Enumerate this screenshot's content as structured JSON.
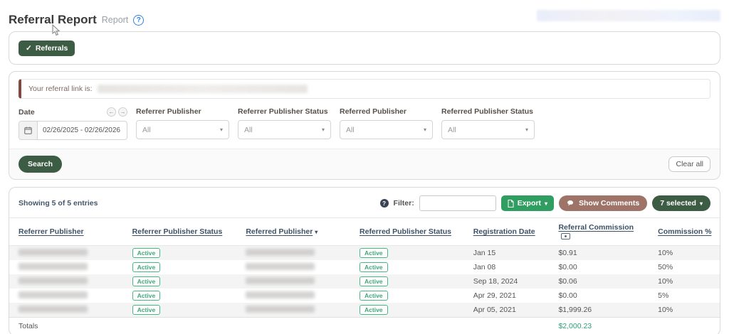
{
  "page": {
    "title": "Referral Report",
    "subtitle": "Report"
  },
  "tabs": {
    "referrals_label": "Referrals"
  },
  "filters": {
    "referral_link_label": "Your referral link is:",
    "date": {
      "label": "Date",
      "value": "02/26/2025 - 02/26/2026"
    },
    "selects": [
      {
        "label": "Referrer Publisher",
        "value": "All"
      },
      {
        "label": "Referrer Publisher Status",
        "value": "All"
      },
      {
        "label": "Referred Publisher",
        "value": "All"
      },
      {
        "label": "Referred Publisher Status",
        "value": "All"
      }
    ],
    "search_label": "Search",
    "clear_label": "Clear all"
  },
  "table_toolbar": {
    "showing_text": "Showing 5 of 5 entries",
    "filter_label": "Filter:",
    "filter_value": "",
    "export_label": "Export",
    "show_comments_label": "Show Comments",
    "selected_label": "7 selected"
  },
  "table": {
    "headers": [
      {
        "label": "Referrer Publisher"
      },
      {
        "label": "Referrer Publisher Status"
      },
      {
        "label": "Referred Publisher",
        "sort_indicator": "▾"
      },
      {
        "label": "Referred Publisher Status"
      },
      {
        "label": "Registration Date"
      },
      {
        "label": "Referral Commission",
        "icon": "cash-icon"
      },
      {
        "label": "Commission %"
      }
    ],
    "rows": [
      {
        "referrer_status": "Active",
        "referred_status": "Active",
        "registration_date": "Jan 15",
        "commission": "$0.91",
        "commission_pct": "10%"
      },
      {
        "referrer_status": "Active",
        "referred_status": "Active",
        "registration_date": "Jan 08",
        "commission": "$0.00",
        "commission_pct": "50%"
      },
      {
        "referrer_status": "Active",
        "referred_status": "Active",
        "registration_date": "Sep 18, 2024",
        "commission": "$0.06",
        "commission_pct": "10%"
      },
      {
        "referrer_status": "Active",
        "referred_status": "Active",
        "registration_date": "Apr 29, 2021",
        "commission": "$0.00",
        "commission_pct": "5%"
      },
      {
        "referrer_status": "Active",
        "referred_status": "Active",
        "registration_date": "Apr 05, 2021",
        "commission": "$1,999.26",
        "commission_pct": "10%"
      }
    ],
    "totals_label": "Totals",
    "totals_commission": "$2,000.23"
  },
  "icons": {
    "help": "?",
    "check": "✓",
    "arrow_left": "←",
    "arrow_right": "→",
    "caret_down": "▾",
    "filter_help": "?",
    "calendar": "calendar-icon",
    "export_file": "file-icon",
    "comments": "speech-bubble-icon",
    "commission": "cash-icon",
    "sort": "▾"
  },
  "colors": {
    "dark_green": "#3d5c44",
    "export_green": "#2f9e60",
    "comments_mauve": "#9f7468",
    "badge_green": "#45b885",
    "totals_green": "#2d9e79",
    "alert_maroon": "#7d4b42",
    "help_blue": "#2f80e8",
    "header_slate": "#3d5166"
  }
}
